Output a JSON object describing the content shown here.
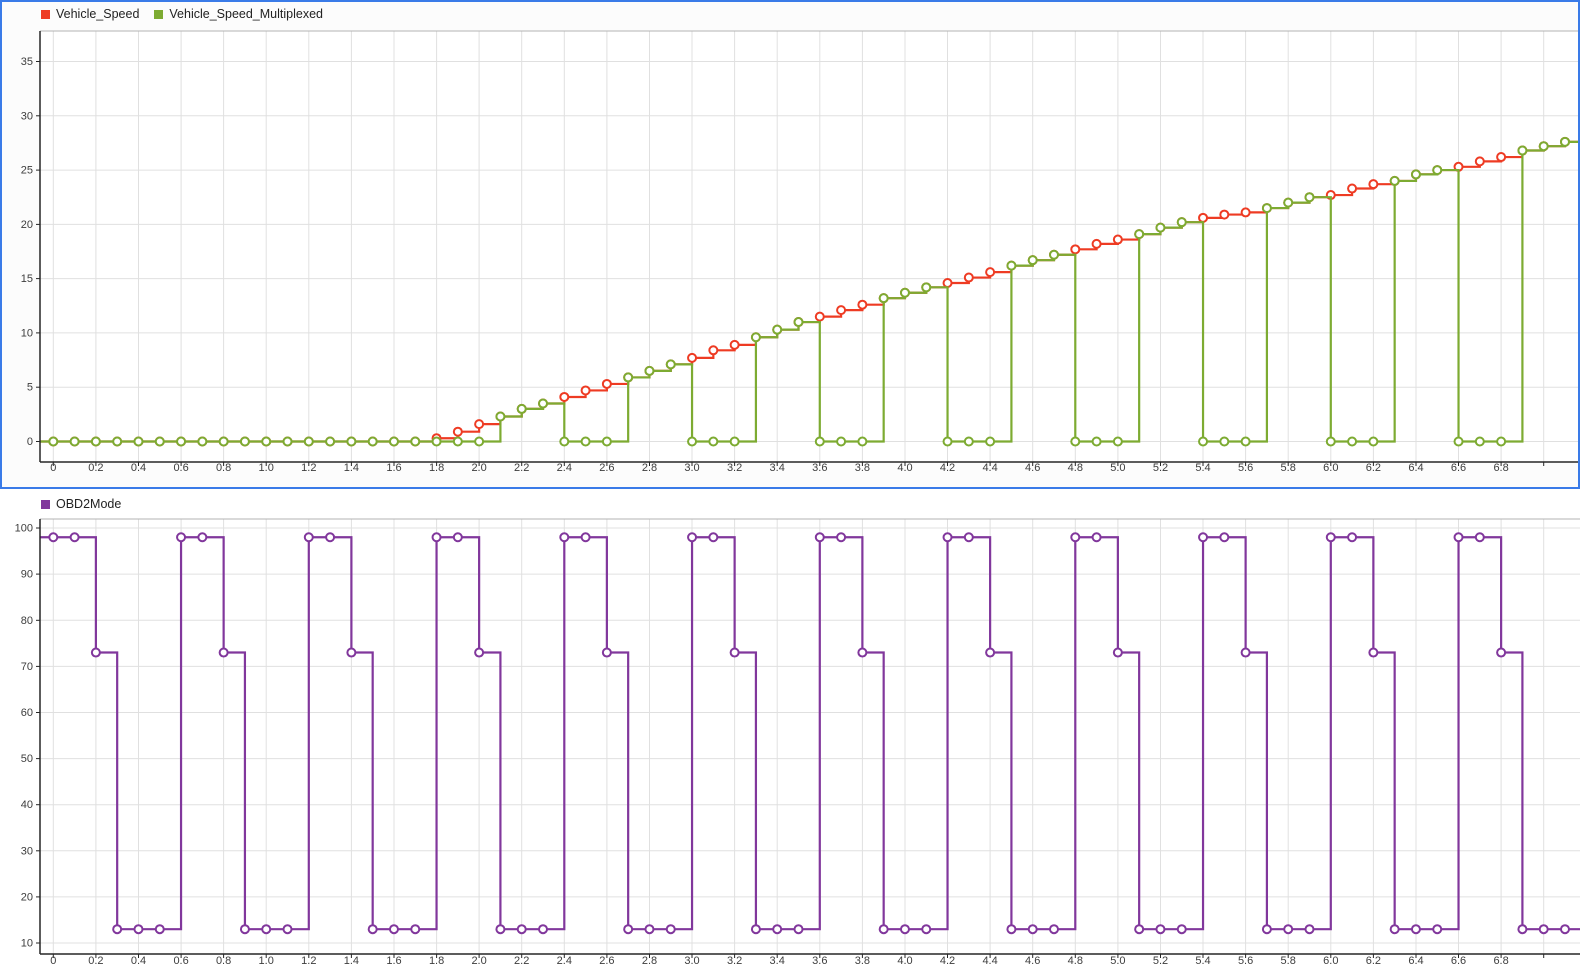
{
  "style": {
    "grid_color": "#e0e0e0",
    "axis_color": "#262626",
    "top_spine_color": "#b3b3b3",
    "plot_bg": "#ffffff",
    "selection_border_color": "#3a7be8",
    "tick_text_color": "#3d3d3d"
  },
  "legends": {
    "top": [
      {
        "label": "Vehicle_Speed",
        "color": "#ee3b23"
      },
      {
        "label": "Vehicle_Speed_Multiplexed",
        "color": "#7dab32"
      }
    ],
    "bottom": [
      {
        "label": "OBD2Mode",
        "color": "#81379c"
      }
    ]
  },
  "chart_data": [
    {
      "type": "line",
      "interpolation": "stairs",
      "marker": "circle",
      "selected": true,
      "title": "",
      "xlabel": "",
      "ylabel": "",
      "grid": true,
      "legend_position": "top-left",
      "sample_step": 0.1,
      "xlim": [
        -0.0625,
        7.1705
      ],
      "ylim": [
        -1.89,
        37.81
      ],
      "x_ticks": [
        0,
        0.2,
        0.4,
        0.6,
        0.8,
        1,
        1.2,
        1.4,
        1.6,
        1.8,
        2,
        2.2,
        2.4,
        2.6,
        2.8,
        3,
        3.2,
        3.4,
        3.6,
        3.8,
        4,
        4.2,
        4.4,
        4.6,
        4.8,
        5,
        5.2,
        5.4,
        5.6,
        5.8,
        6,
        6.2,
        6.4,
        6.6,
        6.8,
        7
      ],
      "x_tick_labels": [
        "0",
        "0.2",
        "0.4",
        "0.6",
        "0.8",
        "1.0",
        "1.2",
        "1.4",
        "1.6",
        "1.8",
        "2.0",
        "2.2",
        "2.4",
        "2.6",
        "2.8",
        "3.0",
        "3.2",
        "3.4",
        "3.6",
        "3.8",
        "4.0",
        "4.2",
        "4.4",
        "4.6",
        "4.8",
        "5.0",
        "5.2",
        "5.4",
        "5.6",
        "5.8",
        "6.0",
        "6.2",
        "6.4",
        "6.6",
        "6.8",
        ""
      ],
      "y_ticks": [
        0,
        5,
        10,
        15,
        20,
        25,
        30,
        35
      ],
      "y_tick_labels": [
        "0",
        "5",
        "10",
        "15",
        "20",
        "25",
        "30",
        "35"
      ],
      "x": [
        0,
        0.1,
        0.2,
        0.3,
        0.4,
        0.5,
        0.6,
        0.7,
        0.8,
        0.9,
        1,
        1.1,
        1.2,
        1.3,
        1.4,
        1.5,
        1.6,
        1.7,
        1.8,
        1.9,
        2,
        2.1,
        2.2,
        2.3,
        2.4,
        2.5,
        2.6,
        2.7,
        2.8,
        2.9,
        3,
        3.1,
        3.2,
        3.3,
        3.4,
        3.5,
        3.6,
        3.7,
        3.8,
        3.9,
        4,
        4.1,
        4.2,
        4.3,
        4.4,
        4.5,
        4.6,
        4.7,
        4.8,
        4.9,
        5,
        5.1,
        5.2,
        5.3,
        5.4,
        5.5,
        5.6,
        5.7,
        5.8,
        5.9,
        6,
        6.1,
        6.2,
        6.3,
        6.4,
        6.5,
        6.6,
        6.7,
        6.8,
        6.9,
        7,
        7.1
      ],
      "series": [
        {
          "name": "Vehicle_Speed",
          "color": "#ee3b23",
          "values": [
            0,
            0,
            0,
            0,
            0,
            0,
            0,
            0,
            0,
            0,
            0,
            0,
            0,
            0,
            0,
            0,
            0,
            0,
            0.3,
            0.9,
            1.6,
            2.3,
            3,
            3.5,
            4.1,
            4.7,
            5.3,
            5.9,
            6.5,
            7.1,
            7.7,
            8.4,
            8.9,
            9.6,
            10.3,
            11,
            11.5,
            12.1,
            12.6,
            13.2,
            13.7,
            14.2,
            14.6,
            15.1,
            15.6,
            16.2,
            16.7,
            17.2,
            17.7,
            18.2,
            18.6,
            19.1,
            19.7,
            20.2,
            20.6,
            20.9,
            21.1,
            21.5,
            22,
            22.5,
            22.7,
            23.3,
            23.7,
            24,
            24.6,
            25,
            25.3,
            25.8,
            26.2,
            26.8,
            27.2,
            27.6
          ]
        },
        {
          "name": "Vehicle_Speed_Multiplexed",
          "color": "#7dab32",
          "values": [
            0,
            0,
            0,
            0,
            0,
            0,
            0,
            0,
            0,
            0,
            0,
            0,
            0,
            0,
            0,
            0,
            0,
            0,
            0,
            0,
            0,
            2.3,
            3,
            3.5,
            0,
            0,
            0,
            5.9,
            6.5,
            7.1,
            0,
            0,
            0,
            9.6,
            10.3,
            11,
            0,
            0,
            0,
            13.2,
            13.7,
            14.2,
            0,
            0,
            0,
            16.2,
            16.7,
            17.2,
            0,
            0,
            0,
            19.1,
            19.7,
            20.2,
            0,
            0,
            0,
            21.5,
            22,
            22.5,
            0,
            0,
            0,
            24,
            24.6,
            25,
            0,
            0,
            0,
            26.8,
            27.2,
            27.6
          ]
        }
      ]
    },
    {
      "type": "line",
      "interpolation": "stairs",
      "marker": "circle",
      "selected": false,
      "title": "",
      "xlabel": "",
      "ylabel": "",
      "grid": true,
      "legend_position": "top-left",
      "sample_step": 0.1,
      "xlim": [
        -0.0625,
        7.1705
      ],
      "ylim": [
        7.62,
        101.96
      ],
      "x_ticks": [
        0,
        0.2,
        0.4,
        0.6,
        0.8,
        1,
        1.2,
        1.4,
        1.6,
        1.8,
        2,
        2.2,
        2.4,
        2.6,
        2.8,
        3,
        3.2,
        3.4,
        3.6,
        3.8,
        4,
        4.2,
        4.4,
        4.6,
        4.8,
        5,
        5.2,
        5.4,
        5.6,
        5.8,
        6,
        6.2,
        6.4,
        6.6,
        6.8,
        7
      ],
      "x_tick_labels": [
        "0",
        "0.2",
        "0.4",
        "0.6",
        "0.8",
        "1.0",
        "1.2",
        "1.4",
        "1.6",
        "1.8",
        "2.0",
        "2.2",
        "2.4",
        "2.6",
        "2.8",
        "3.0",
        "3.2",
        "3.4",
        "3.6",
        "3.8",
        "4.0",
        "4.2",
        "4.4",
        "4.6",
        "4.8",
        "5.0",
        "5.2",
        "5.4",
        "5.6",
        "5.8",
        "6.0",
        "6.2",
        "6.4",
        "6.6",
        "6.8",
        ""
      ],
      "y_ticks": [
        10,
        20,
        30,
        40,
        50,
        60,
        70,
        80,
        90,
        100
      ],
      "y_tick_labels": [
        "10",
        "20",
        "30",
        "40",
        "50",
        "60",
        "70",
        "80",
        "90",
        "100"
      ],
      "x": [
        0,
        0.1,
        0.2,
        0.3,
        0.4,
        0.5,
        0.6,
        0.7,
        0.8,
        0.9,
        1,
        1.1,
        1.2,
        1.3,
        1.4,
        1.5,
        1.6,
        1.7,
        1.8,
        1.9,
        2,
        2.1,
        2.2,
        2.3,
        2.4,
        2.5,
        2.6,
        2.7,
        2.8,
        2.9,
        3,
        3.1,
        3.2,
        3.3,
        3.4,
        3.5,
        3.6,
        3.7,
        3.8,
        3.9,
        4,
        4.1,
        4.2,
        4.3,
        4.4,
        4.5,
        4.6,
        4.7,
        4.8,
        4.9,
        5,
        5.1,
        5.2,
        5.3,
        5.4,
        5.5,
        5.6,
        5.7,
        5.8,
        5.9,
        6,
        6.1,
        6.2,
        6.3,
        6.4,
        6.5,
        6.6,
        6.7,
        6.8,
        6.9,
        7,
        7.1
      ],
      "series": [
        {
          "name": "OBD2Mode",
          "color": "#81379c",
          "values": [
            98,
            98,
            73,
            13,
            13,
            13,
            98,
            98,
            73,
            13,
            13,
            13,
            98,
            98,
            73,
            13,
            13,
            13,
            98,
            98,
            73,
            13,
            13,
            13,
            98,
            98,
            73,
            13,
            13,
            13,
            98,
            98,
            73,
            13,
            13,
            13,
            98,
            98,
            73,
            13,
            13,
            13,
            98,
            98,
            73,
            13,
            13,
            13,
            98,
            98,
            73,
            13,
            13,
            13,
            98,
            98,
            73,
            13,
            13,
            13,
            98,
            98,
            73,
            13,
            13,
            13,
            98,
            98,
            73,
            13,
            13,
            13
          ]
        }
      ]
    }
  ]
}
